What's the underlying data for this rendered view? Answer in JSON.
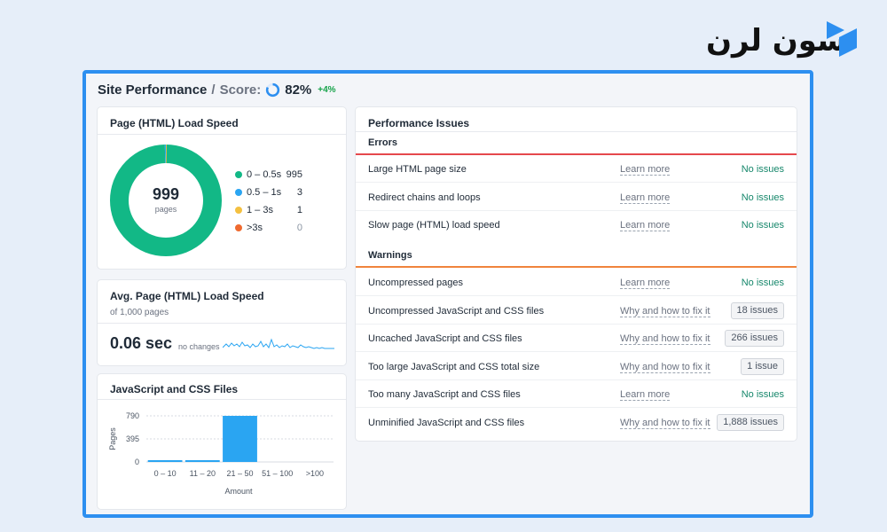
{
  "brand": {
    "logo_text": "سون لرن",
    "logo_color": "#2d8ff0"
  },
  "header": {
    "title": "Site Performance",
    "separator": "/",
    "score_label": "Score:",
    "score_value": "82%",
    "score_fraction": 0.82,
    "score_delta": "+4%"
  },
  "load_speed": {
    "title": "Page (HTML) Load Speed",
    "total": "999",
    "total_label": "pages",
    "legend": [
      {
        "label": "0 – 0.5s",
        "value": "995",
        "color": "#12b886"
      },
      {
        "label": "0.5 – 1s",
        "value": "3",
        "color": "#2aa5f2"
      },
      {
        "label": "1 – 3s",
        "value": "1",
        "color": "#f4c040"
      },
      {
        "label": ">3s",
        "value": "0",
        "color": "#ef6a2f"
      }
    ]
  },
  "avg_speed": {
    "title": "Avg. Page (HTML) Load Speed",
    "subtitle": "of 1,000 pages",
    "value": "0.06 sec",
    "change_label": "no changes"
  },
  "js_css": {
    "title": "JavaScript and CSS Files",
    "chart_data": {
      "type": "bar",
      "categories": [
        "0 – 10",
        "11 – 20",
        "21 – 50",
        "51 – 100",
        ">100"
      ],
      "values": [
        14,
        8,
        790,
        0,
        0
      ],
      "ylabel": "Pages",
      "xlabel": "Amount",
      "yticks": [
        "0",
        "395",
        "790"
      ],
      "ylim": [
        0,
        790
      ],
      "color": "#2aa5f2"
    }
  },
  "issues": {
    "title": "Performance Issues",
    "errors_label": "Errors",
    "warnings_label": "Warnings",
    "error_color": "#e5484d",
    "warning_color": "#f0843c",
    "errors": [
      {
        "name": "Large HTML page size",
        "link": "Learn more",
        "status": "No issues",
        "badge": false
      },
      {
        "name": "Redirect chains and loops",
        "link": "Learn more",
        "status": "No issues",
        "badge": false
      },
      {
        "name": "Slow page (HTML) load speed",
        "link": "Learn more",
        "status": "No issues",
        "badge": false
      }
    ],
    "warnings": [
      {
        "name": "Uncompressed pages",
        "link": "Learn more",
        "status": "No issues",
        "badge": false
      },
      {
        "name": "Uncompressed JavaScript and CSS files",
        "link": "Why and how to fix it",
        "status": "18 issues",
        "badge": true
      },
      {
        "name": "Uncached JavaScript and CSS files",
        "link": "Why and how to fix it",
        "status": "266 issues",
        "badge": true
      },
      {
        "name": "Too large JavaScript and CSS total size",
        "link": "Why and how to fix it",
        "status": "1 issue",
        "badge": true
      },
      {
        "name": "Too many JavaScript and CSS files",
        "link": "Learn more",
        "status": "No issues",
        "badge": false
      },
      {
        "name": "Unminified JavaScript and CSS files",
        "link": "Why and how to fix it",
        "status": "1,888 issues",
        "badge": true
      }
    ]
  }
}
